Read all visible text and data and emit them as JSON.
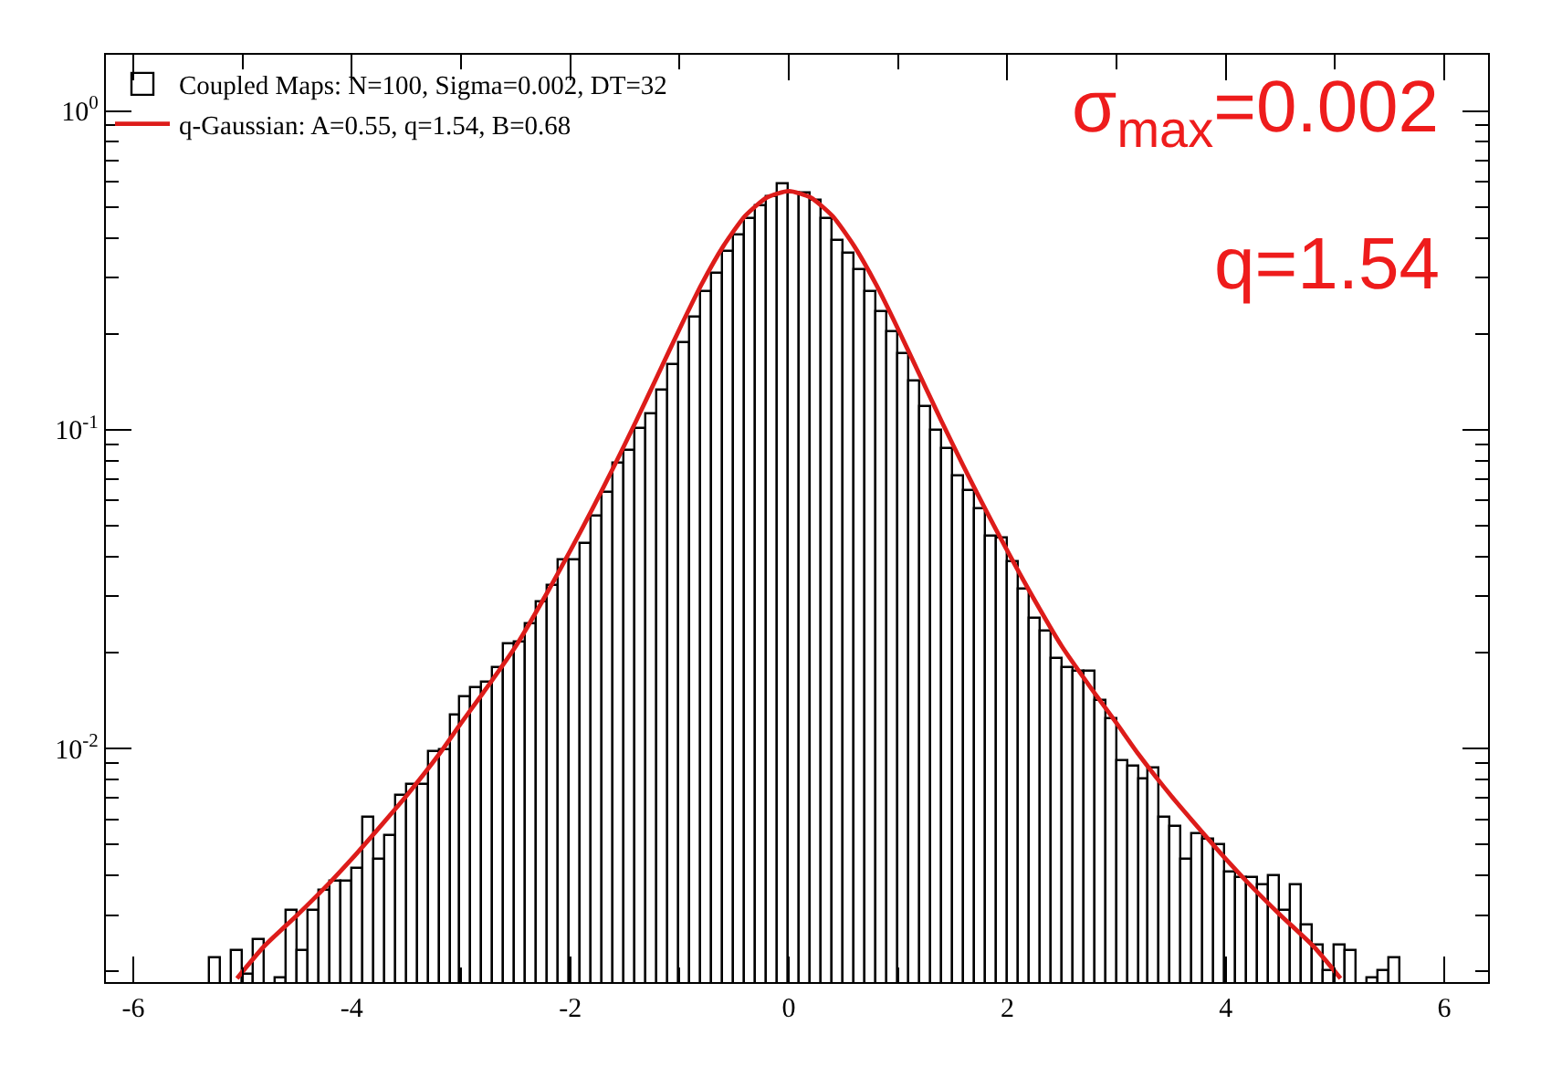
{
  "chart_data": {
    "type": "histogram",
    "bins": [
      -5.3,
      -5.2,
      -5.1,
      -5.0,
      -4.9,
      -4.8,
      -4.7,
      -4.6,
      -4.5,
      -4.4,
      -4.3,
      -4.2,
      -4.1,
      -4.0,
      -3.9,
      -3.8,
      -3.7,
      -3.6,
      -3.5,
      -3.4,
      -3.3,
      -3.2,
      -3.1,
      -3.0,
      -2.9,
      -2.8,
      -2.7,
      -2.6,
      -2.5,
      -2.4,
      -2.3,
      -2.2,
      -2.1,
      -2.0,
      -1.9,
      -1.8,
      -1.7,
      -1.6,
      -1.5,
      -1.4,
      -1.3,
      -1.2,
      -1.1,
      -1.0,
      -0.9,
      -0.8,
      -0.7,
      -0.6,
      -0.5,
      -0.4,
      -0.3,
      -0.2,
      -0.1,
      0.0,
      0.1,
      0.2,
      0.3,
      0.4,
      0.5,
      0.6,
      0.7,
      0.8,
      0.9,
      1.0,
      1.1,
      1.2,
      1.3,
      1.4,
      1.5,
      1.6,
      1.7,
      1.8,
      1.9,
      2.0,
      2.1,
      2.2,
      2.3,
      2.4,
      2.5,
      2.6,
      2.7,
      2.8,
      2.9,
      3.0,
      3.1,
      3.2,
      3.3,
      3.4,
      3.5,
      3.6,
      3.7,
      3.8,
      3.9,
      4.0,
      4.1,
      4.2,
      4.3,
      4.4,
      4.5,
      4.6,
      4.7,
      4.8,
      4.9,
      5.0,
      5.1,
      5.2,
      5.3,
      5.4,
      5.5,
      5.6
    ],
    "series": [
      {
        "name": "Coupled Maps: N=100, Sigma=0.002, DT=32",
        "color": "#000000",
        "values": [
          0.0022,
          null,
          0.0023,
          0.00196,
          0.0025,
          null,
          0.0019,
          0.0031,
          0.0023,
          0.0031,
          0.0036,
          0.0038,
          0.0038,
          0.0042,
          0.0061,
          0.0045,
          0.0053,
          0.0071,
          0.0077,
          0.0077,
          0.0098,
          0.0099,
          0.0127,
          0.0145,
          0.0155,
          0.016,
          0.0178,
          0.0213,
          0.0216,
          0.0244,
          0.0288,
          0.0324,
          0.0389,
          0.0387,
          0.044,
          0.0537,
          0.0634,
          0.078,
          0.086,
          0.101,
          0.112,
          0.132,
          0.159,
          0.187,
          0.225,
          0.27,
          0.31,
          0.36,
          0.407,
          0.46,
          0.502,
          0.537,
          0.586,
          0.553,
          0.55,
          0.525,
          0.46,
          0.39,
          0.357,
          0.317,
          0.269,
          0.233,
          0.202,
          0.172,
          0.141,
          0.118,
          0.099,
          0.087,
          0.0713,
          0.0645,
          0.0561,
          0.046,
          0.0457,
          0.0386,
          0.0317,
          0.0255,
          0.0233,
          0.0191,
          0.0179,
          0.0173,
          0.0175,
          0.0141,
          0.0123,
          0.0091,
          0.0088,
          0.008,
          0.0086,
          0.0061,
          0.0057,
          0.0045,
          0.0054,
          0.0052,
          0.005,
          0.0041,
          0.0039,
          0.0039,
          0.0037,
          0.004,
          0.0031,
          0.0037,
          0.0028,
          0.0024,
          0.002,
          0.0024,
          0.0023,
          null,
          0.0019,
          0.002,
          0.0022
        ]
      },
      {
        "name": "q-Gaussian: A=0.55, q=1.54, B=0.68",
        "type": "line",
        "color": "#dd1c1a",
        "x": [
          -5.05,
          -4.8,
          -4.5,
          -4.2,
          -4.0,
          -3.7,
          -3.5,
          -3.2,
          -3.0,
          -2.8,
          -2.5,
          -2.2,
          -2.0,
          -1.8,
          -1.6,
          -1.4,
          -1.2,
          -1.0,
          -0.8,
          -0.6,
          -0.4,
          -0.2,
          0,
          0.2,
          0.4,
          0.6,
          0.8,
          1.0,
          1.2,
          1.4,
          1.6,
          1.8,
          2.0,
          2.2,
          2.5,
          2.8,
          3.0,
          3.2,
          3.5,
          3.7,
          4.0,
          4.2,
          4.5,
          4.8,
          5.05
        ],
        "values": [
          0.0019,
          0.0024,
          0.003,
          0.0038,
          0.0045,
          0.0059,
          0.0071,
          0.0096,
          0.012,
          0.0149,
          0.0209,
          0.0313,
          0.0417,
          0.0562,
          0.0767,
          0.106,
          0.148,
          0.207,
          0.285,
          0.376,
          0.468,
          0.535,
          0.56,
          0.535,
          0.468,
          0.376,
          0.285,
          0.207,
          0.148,
          0.106,
          0.0767,
          0.0562,
          0.0417,
          0.0313,
          0.0209,
          0.0149,
          0.012,
          0.0096,
          0.0071,
          0.0059,
          0.0045,
          0.0038,
          0.003,
          0.0024,
          0.0019
        ]
      }
    ],
    "annotations": [
      "σ$_{max}$=0.002",
      "q=1.54"
    ],
    "xlim": [
      -6.25,
      6.4
    ],
    "xticks": [
      -6,
      {
        "value": -5,
        "label": null
      },
      -4,
      {
        "value": -3,
        "label": null
      },
      -2,
      {
        "value": -1,
        "label": null
      },
      0,
      {
        "value": 1,
        "label": null
      },
      2,
      {
        "value": 3,
        "label": null
      },
      4,
      {
        "value": 5,
        "label": null
      },
      6
    ],
    "ylim": [
      0.00185,
      1.5
    ],
    "yticks": [
      {
        "value": 1,
        "label": "10$^{0}$"
      },
      {
        "value": 0.1,
        "label": "10$^{-1}$"
      },
      {
        "value": 0.01,
        "label": "10$^{-2}$"
      },
      {
        "value": 0.002,
        "label": null
      },
      {
        "value": 0.003,
        "label": null
      },
      {
        "value": 0.004,
        "label": null
      },
      {
        "value": 0.005,
        "label": null
      },
      {
        "value": 0.006,
        "label": null
      },
      {
        "value": 0.007,
        "label": null
      },
      {
        "value": 0.008,
        "label": null
      },
      {
        "value": 0.009,
        "label": null
      },
      {
        "value": 0.02,
        "label": null
      },
      {
        "value": 0.03,
        "label": null
      },
      {
        "value": 0.04,
        "label": null
      },
      {
        "value": 0.05,
        "label": null
      },
      {
        "value": 0.06,
        "label": null
      },
      {
        "value": 0.07,
        "label": null
      },
      {
        "value": 0.08,
        "label": null
      },
      {
        "value": 0.09,
        "label": null
      },
      {
        "value": 0.2,
        "label": null
      },
      {
        "value": 0.3,
        "label": null
      },
      {
        "value": 0.4,
        "label": null
      },
      {
        "value": 0.5,
        "label": null
      },
      {
        "value": 0.6,
        "label": null
      },
      {
        "value": 0.7,
        "label": null
      },
      {
        "value": 0.8,
        "label": null
      },
      {
        "value": 0.9,
        "label": null
      }
    ],
    "log": "y",
    "legend": "top left"
  }
}
